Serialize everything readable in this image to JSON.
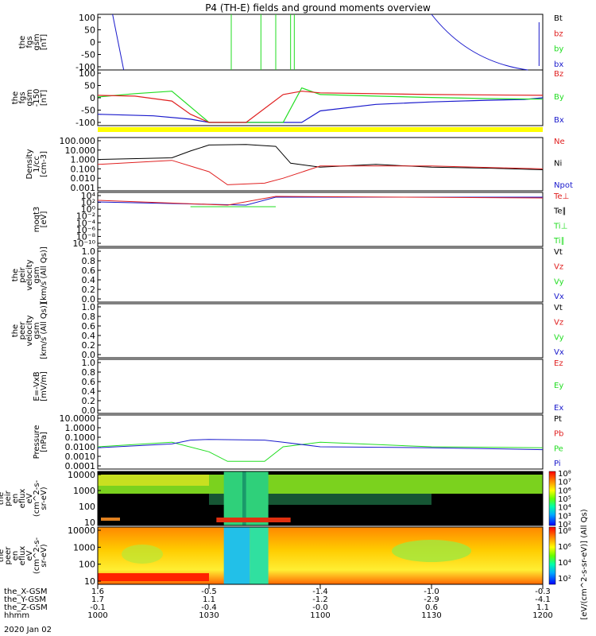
{
  "title": "P4 (TH-E) fields and ground moments overview",
  "date": "2020 Jan 02",
  "time_axis": {
    "ticks": [
      "1000",
      "1030",
      "1100",
      "1130",
      "1200"
    ],
    "rows": [
      {
        "label": "the_X-GSM",
        "values": [
          "1.6",
          "-0.5",
          "-1.4",
          "-1.0",
          "-0.3"
        ]
      },
      {
        "label": "the_Y-GSM",
        "values": [
          "1.7",
          "1.1",
          "-1.2",
          "-2.9",
          "-4.1"
        ]
      },
      {
        "label": "the_Z-GSM",
        "values": [
          "-0.1",
          "-0.4",
          "-0.0",
          "0.6",
          "1.1"
        ]
      },
      {
        "label": "hhmm",
        "values": [
          "1000",
          "1030",
          "1100",
          "1130",
          "1200"
        ]
      }
    ]
  },
  "colors": {
    "black": "#000000",
    "red": "#e02020",
    "green": "#22dd22",
    "blue": "#1a1acc",
    "yellow": "#ffff00"
  },
  "panels": [
    {
      "id": "fgs-gsm",
      "ylabel": [
        "the",
        "fgs",
        "gsm",
        "[nT]"
      ],
      "ticks": [
        "100",
        "50",
        "0",
        "-50",
        "-100"
      ],
      "legend": [
        {
          "t": "Bt",
          "c": "black"
        },
        {
          "t": "bz",
          "c": "red"
        },
        {
          "t": "by",
          "c": "green"
        },
        {
          "t": "bx",
          "c": "blue"
        }
      ]
    },
    {
      "id": "fgs-gsm-150",
      "ylabel": [
        "the",
        "fgs",
        "gsm",
        "-150",
        "[nT]"
      ],
      "ticks": [
        "100",
        "50",
        "0",
        "-50",
        "-100"
      ],
      "legend": [
        {
          "t": "Bz",
          "c": "red"
        },
        {
          "t": "By",
          "c": "green"
        },
        {
          "t": "Bx",
          "c": "blue"
        }
      ]
    },
    {
      "id": "density",
      "ylabel": [
        "Density",
        "1/cc",
        "[cm-3]"
      ],
      "ticks": [
        "100.000",
        "10.000",
        "1.000",
        "0.100",
        "0.010",
        "0.001"
      ],
      "legend": [
        {
          "t": "Ne",
          "c": "red"
        },
        {
          "t": "Ni",
          "c": "black"
        },
        {
          "t": "Npot",
          "c": "blue"
        }
      ]
    },
    {
      "id": "temperature",
      "ylabel": [
        "moqt3",
        "[eV]"
      ],
      "ticks": [
        "10⁴",
        "10²",
        "10⁰",
        "10⁻²",
        "10⁻⁴",
        "10⁻⁶",
        "10⁻⁸",
        "10⁻¹⁰"
      ],
      "legend": [
        {
          "t": "Te⊥",
          "c": "red"
        },
        {
          "t": "Te∥",
          "c": "black"
        },
        {
          "t": "Ti⊥",
          "c": "green"
        },
        {
          "t": "Ti∥",
          "c": "green"
        }
      ]
    },
    {
      "id": "peir-velocity",
      "ylabel": [
        "the",
        "peir",
        "velocity",
        "gsm",
        "[km/s (All Qs)]"
      ],
      "ticks": [
        "1.0",
        "0.8",
        "0.6",
        "0.4",
        "0.2",
        "0.0"
      ],
      "legend": [
        {
          "t": "Vt",
          "c": "black"
        },
        {
          "t": "Vz",
          "c": "red"
        },
        {
          "t": "Vy",
          "c": "green"
        },
        {
          "t": "Vx",
          "c": "blue"
        }
      ]
    },
    {
      "id": "peer-velocity",
      "ylabel": [
        "the",
        "peer",
        "velocity",
        "gsm",
        "[km/s (All Qs)]"
      ],
      "ticks": [
        "1.0",
        "0.8",
        "0.6",
        "0.4",
        "0.2",
        "0.0"
      ],
      "legend": [
        {
          "t": "Vt",
          "c": "black"
        },
        {
          "t": "Vz",
          "c": "red"
        },
        {
          "t": "Vy",
          "c": "green"
        },
        {
          "t": "Vx",
          "c": "blue"
        }
      ]
    },
    {
      "id": "efield",
      "ylabel": [
        "E=-VxB",
        "[mV/m]"
      ],
      "ticks": [
        "1.0",
        "0.8",
        "0.6",
        "0.4",
        "0.2",
        "0.0"
      ],
      "legend": [
        {
          "t": "Ez",
          "c": "red"
        },
        {
          "t": "Ey",
          "c": "green"
        },
        {
          "t": "Ex",
          "c": "blue"
        }
      ]
    },
    {
      "id": "pressure",
      "ylabel": [
        "Pressure",
        "[nPa]"
      ],
      "ticks": [
        "10.0000",
        "1.0000",
        "0.1000",
        "0.0100",
        "0.0010",
        "0.0001"
      ],
      "legend": [
        {
          "t": "Pt",
          "c": "black"
        },
        {
          "t": "Pb",
          "c": "red"
        },
        {
          "t": "Pe",
          "c": "green"
        },
        {
          "t": "Pi",
          "c": "blue"
        }
      ]
    },
    {
      "id": "peir-spec",
      "ylabel": [
        "the",
        "peir",
        "en",
        "eflux",
        "eV",
        "(cm^2-s-",
        "sr-eV)"
      ],
      "ticks": [
        "10000",
        "1000",
        "100",
        "10"
      ]
    },
    {
      "id": "peer-spec",
      "ylabel": [
        "the",
        "peer",
        "en",
        "eflux",
        "eV",
        "(cm^2-s-",
        "sr-eV)"
      ],
      "ticks": [
        "10000",
        "1000",
        "100",
        "10"
      ]
    }
  ],
  "colorbar": {
    "ticks": [
      "10⁸",
      "10⁷",
      "10⁶",
      "10⁵",
      "10⁴",
      "10³",
      "10²"
    ],
    "ticks2": [
      "10⁸",
      "10⁶",
      "10⁴",
      "10²"
    ],
    "label": "[eV/(cm^2-s-sr-eV)] (All Qs)"
  },
  "chart_data": {
    "type": "line",
    "title": "P4 (TH-E) fields and ground moments overview",
    "xlabel": "hhmm",
    "x_range": [
      "1000",
      "1200"
    ],
    "series": [
      {
        "name": "Bx (gsm-150)",
        "x": [
          "1000",
          "1015",
          "1025",
          "1030",
          "1035",
          "1045",
          "1050",
          "1055",
          "1100",
          "1115",
          "1130",
          "1145",
          "1155",
          "1200"
        ],
        "values": [
          -100,
          -110,
          -130,
          -150,
          -150,
          -150,
          -150,
          -150,
          -80,
          -40,
          -25,
          -15,
          -10,
          0
        ]
      },
      {
        "name": "By (gsm-150)",
        "x": [
          "1000",
          "1010",
          "1020",
          "1030",
          "1040",
          "1050",
          "1055",
          "1100",
          "1115",
          "1130",
          "1145",
          "1200"
        ],
        "values": [
          5,
          25,
          40,
          -150,
          -150,
          -150,
          60,
          20,
          10,
          2,
          -5,
          -8
        ]
      },
      {
        "name": "Bz (gsm-150)",
        "x": [
          "1000",
          "1010",
          "1020",
          "1025",
          "1030",
          "1040",
          "1050",
          "1055",
          "1100",
          "1130",
          "1200"
        ],
        "values": [
          15,
          10,
          -20,
          -100,
          -150,
          -150,
          20,
          40,
          30,
          20,
          15
        ]
      },
      {
        "name": "Ni",
        "x": [
          "1000",
          "1020",
          "1025",
          "1030",
          "1040",
          "1048",
          "1052",
          "1100",
          "1115",
          "1130",
          "1145",
          "1200"
        ],
        "values": [
          1.0,
          1.5,
          8.0,
          35.0,
          40.0,
          25.0,
          0.4,
          0.15,
          0.3,
          0.15,
          0.12,
          0.08
        ]
      },
      {
        "name": "Ne",
        "x": [
          "1000",
          "1020",
          "1030",
          "1035",
          "1045",
          "1050",
          "1100",
          "1130",
          "1200"
        ],
        "values": [
          0.3,
          0.8,
          0.05,
          0.002,
          0.003,
          0.01,
          0.2,
          0.2,
          0.1
        ]
      },
      {
        "name": "Pe",
        "x": [
          "1000",
          "1020",
          "1030",
          "1035",
          "1045",
          "1050",
          "1100",
          "1130",
          "1200"
        ],
        "values": [
          0.01,
          0.03,
          0.003,
          0.0003,
          0.0003,
          0.01,
          0.03,
          0.01,
          0.008
        ]
      },
      {
        "name": "Pi",
        "x": [
          "1000",
          "1020",
          "1025",
          "1030",
          "1045",
          "1050",
          "1100",
          "1130",
          "1200"
        ],
        "values": [
          0.008,
          0.02,
          0.05,
          0.06,
          0.05,
          0.03,
          0.01,
          0.008,
          0.005
        ]
      }
    ],
    "ylim_fgs": [
      -100,
      100
    ],
    "ylim_density": [
      0.001,
      100
    ],
    "ylim_pressure": [
      0.0001,
      10
    ]
  }
}
